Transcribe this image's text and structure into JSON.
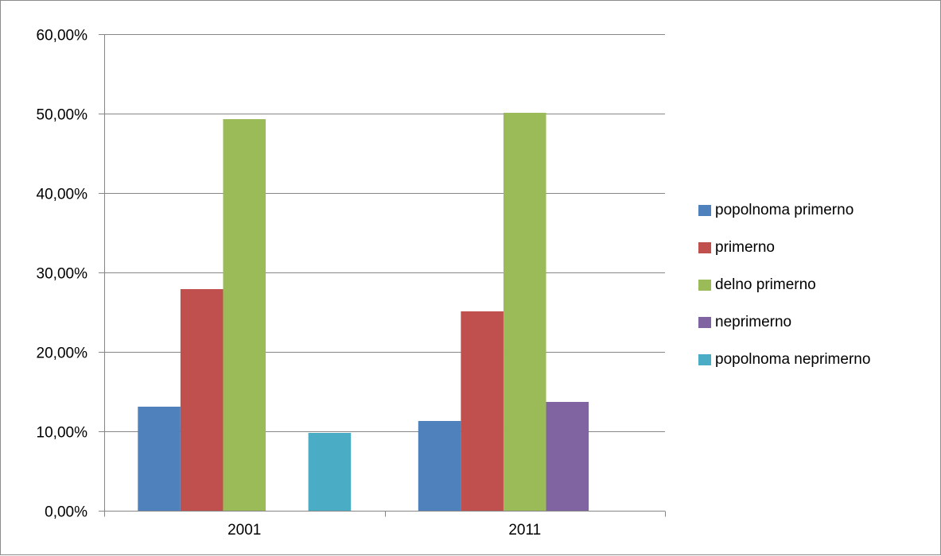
{
  "chart_data": {
    "type": "bar",
    "title": "",
    "xlabel": "",
    "ylabel": "",
    "categories": [
      "2001",
      "2011"
    ],
    "series": [
      {
        "name": "popolnoma primerno",
        "color": "#4f81bd",
        "values": [
          0.131,
          0.113
        ]
      },
      {
        "name": "primerno",
        "color": "#c0504d",
        "values": [
          0.279,
          0.251
        ]
      },
      {
        "name": "delno primerno",
        "color": "#9bbb59",
        "values": [
          0.493,
          0.501
        ]
      },
      {
        "name": "neprimerno",
        "color": "#8064a2",
        "values": [
          0.0,
          0.137
        ]
      },
      {
        "name": "popolnoma neprimerno",
        "color": "#4bacc6",
        "values": [
          0.098,
          0.0
        ]
      }
    ],
    "ylim": [
      0,
      0.6
    ],
    "yticks": [
      0.0,
      0.1,
      0.2,
      0.3,
      0.4,
      0.5,
      0.6
    ],
    "ytick_labels": [
      "0,00%",
      "10,00%",
      "20,00%",
      "30,00%",
      "40,00%",
      "50,00%",
      "60,00%"
    ],
    "grid": true,
    "legend_position": "right"
  }
}
